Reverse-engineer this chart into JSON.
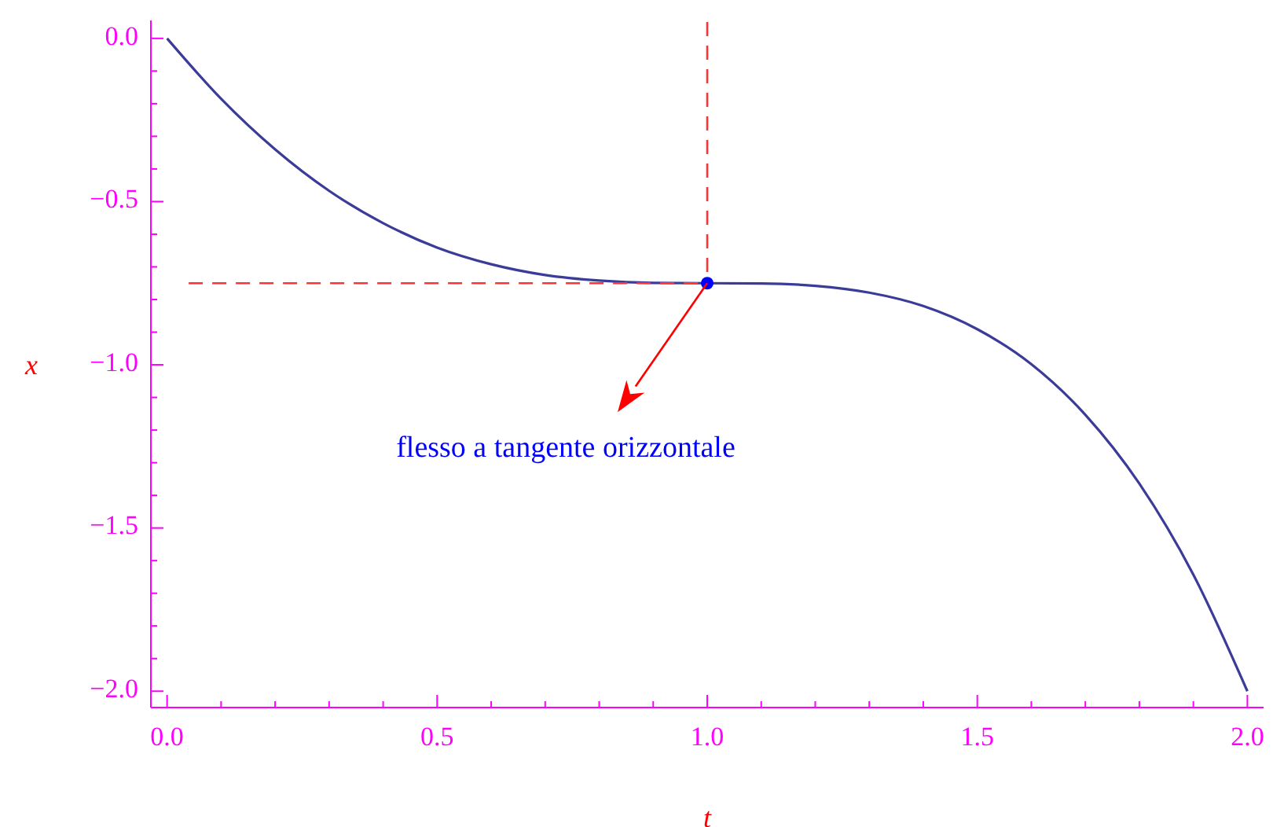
{
  "chart_data": {
    "type": "line",
    "xlabel": "t",
    "ylabel": "x",
    "xlim": [
      -0.03,
      2.03
    ],
    "ylim": [
      -2.05,
      0.055
    ],
    "xticks": [
      {
        "value": 0,
        "label": "0.0"
      },
      {
        "value": 0.1,
        "label": null
      },
      {
        "value": 0.2,
        "label": null
      },
      {
        "value": 0.3,
        "label": null
      },
      {
        "value": 0.4,
        "label": null
      },
      {
        "value": 0.5,
        "label": "0.5"
      },
      {
        "value": 0.6,
        "label": null
      },
      {
        "value": 0.7,
        "label": null
      },
      {
        "value": 0.8,
        "label": null
      },
      {
        "value": 0.9,
        "label": null
      },
      {
        "value": 1,
        "label": "1.0"
      },
      {
        "value": 1.1,
        "label": null
      },
      {
        "value": 1.2,
        "label": null
      },
      {
        "value": 1.3,
        "label": null
      },
      {
        "value": 1.4,
        "label": null
      },
      {
        "value": 1.5,
        "label": "1.5"
      },
      {
        "value": 1.6,
        "label": null
      },
      {
        "value": 1.7,
        "label": null
      },
      {
        "value": 1.8,
        "label": null
      },
      {
        "value": 1.9,
        "label": null
      },
      {
        "value": 2,
        "label": "2.0"
      }
    ],
    "yticks": [
      {
        "value": 0,
        "label": "0.0"
      },
      {
        "value": -0.1,
        "label": null
      },
      {
        "value": -0.2,
        "label": null
      },
      {
        "value": -0.3,
        "label": null
      },
      {
        "value": -0.4,
        "label": null
      },
      {
        "value": -0.5,
        "label": "−0.5"
      },
      {
        "value": -0.6,
        "label": null
      },
      {
        "value": -0.7,
        "label": null
      },
      {
        "value": -0.8,
        "label": null
      },
      {
        "value": -0.9,
        "label": null
      },
      {
        "value": -1,
        "label": "−1.0"
      },
      {
        "value": -1.1,
        "label": null
      },
      {
        "value": -1.2,
        "label": null
      },
      {
        "value": -1.3,
        "label": null
      },
      {
        "value": -1.4,
        "label": null
      },
      {
        "value": -1.5,
        "label": "−1.5"
      },
      {
        "value": -1.6,
        "label": null
      },
      {
        "value": -1.7,
        "label": null
      },
      {
        "value": -1.8,
        "label": null
      },
      {
        "value": -1.9,
        "label": null
      },
      {
        "value": -2,
        "label": "−2.0"
      }
    ],
    "grid": false,
    "series": [
      {
        "color": "#3b3b98",
        "line_style": "solid",
        "x": [
          0,
          0.1,
          0.2,
          0.3,
          0.4,
          0.5,
          0.6,
          0.7,
          0.8,
          0.9,
          1,
          1.1,
          1.2,
          1.3,
          1.4,
          1.5,
          1.6,
          1.7,
          1.8,
          1.9,
          2
        ],
        "values": [
          0,
          -0.185,
          -0.34,
          -0.467,
          -0.566,
          -0.641,
          -0.692,
          -0.725,
          -0.742,
          -0.749,
          -0.75,
          -0.751,
          -0.758,
          -0.779,
          -0.82,
          -0.891,
          -0.998,
          -1.153,
          -1.364,
          -1.643,
          -2.0
        ]
      },
      {
        "type": "line",
        "color": "#ff3333",
        "line_style": "dashed",
        "x": [
          0.04,
          1
        ],
        "values": [
          -0.75,
          -0.75
        ]
      },
      {
        "type": "line",
        "color": "#ff3333",
        "line_style": "dashed",
        "x": [
          1,
          1
        ],
        "values": [
          0.05,
          -0.75
        ]
      },
      {
        "type": "scatter",
        "color": "#0000ff",
        "marker": "circle",
        "x": [
          1
        ],
        "values": [
          -0.75
        ]
      }
    ],
    "annotations": [
      "flesso a tangente orizzontale"
    ]
  }
}
